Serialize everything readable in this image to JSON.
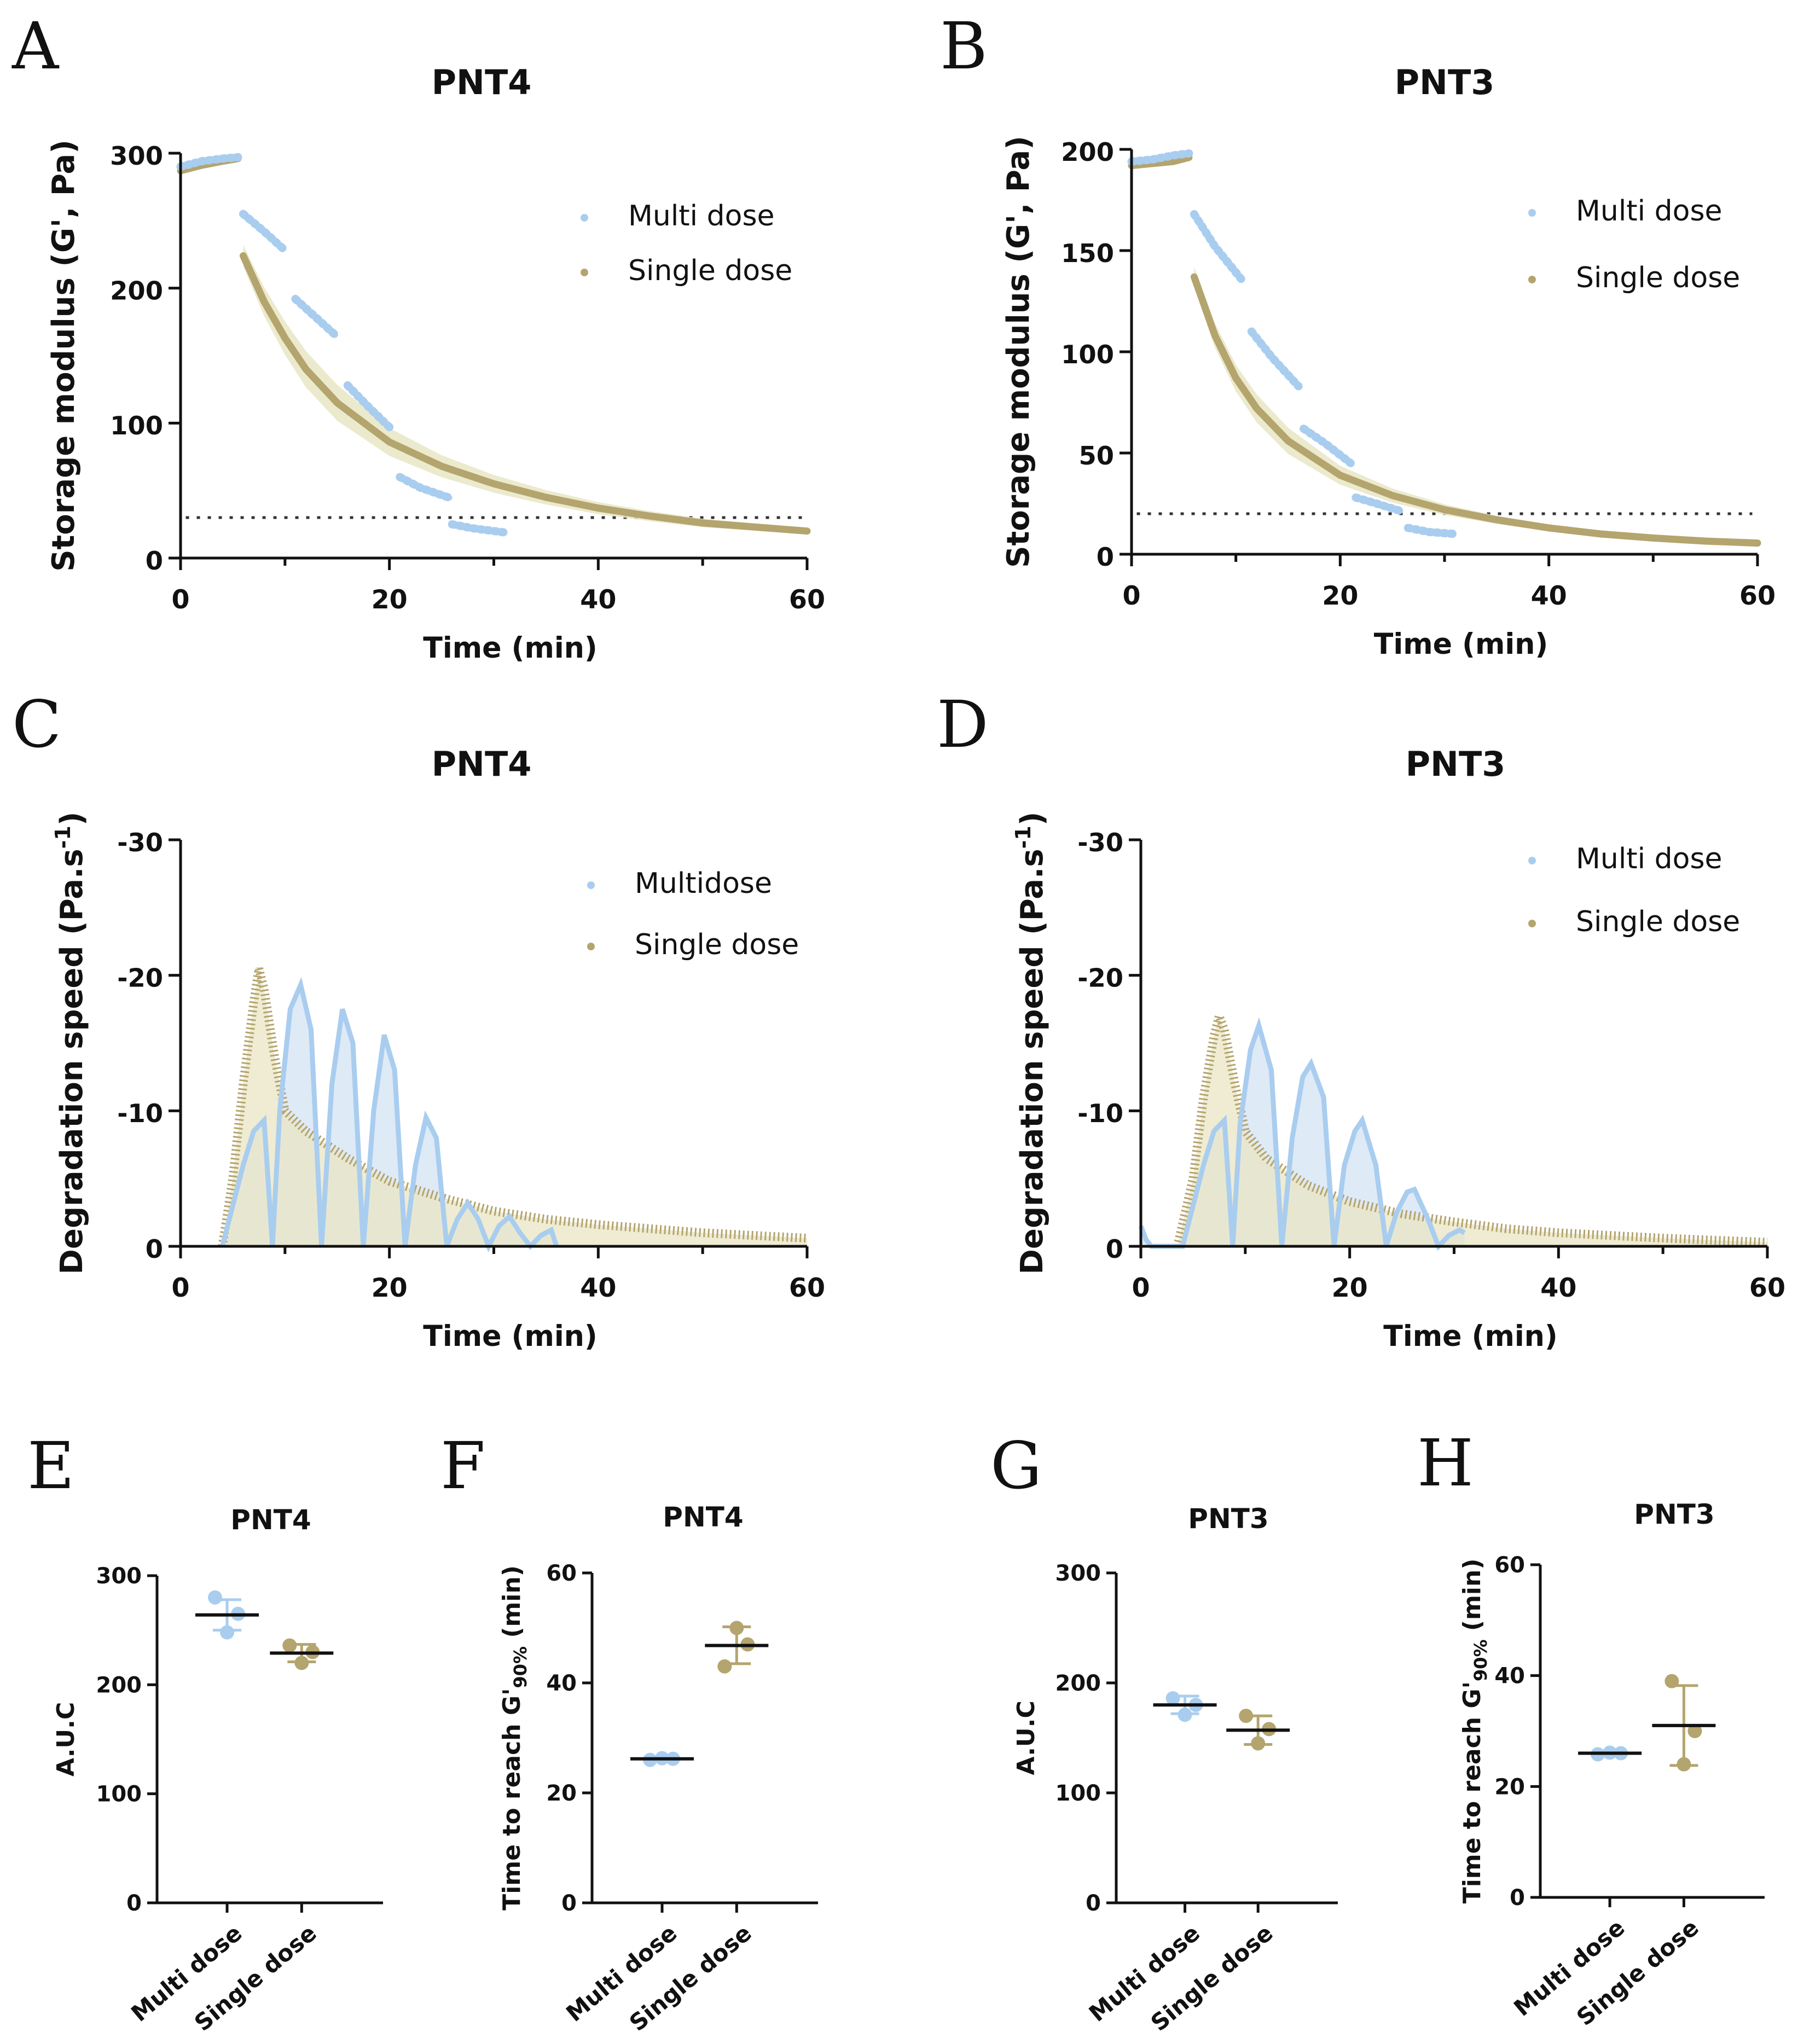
{
  "colors": {
    "multi": "#a9cdef",
    "multi_fill": "#dbe8f6",
    "single": "#b4a46e",
    "single_fill": "#e9e6c4",
    "threshold": "#333333",
    "axis": "#111111"
  },
  "chart_data": [
    {
      "panel": "A",
      "type": "line",
      "title": "PNT4",
      "xlabel": "Time (min)",
      "ylabel": "Storage modulus (G',  Pa)",
      "xlim": [
        0,
        60
      ],
      "ylim": [
        0,
        300
      ],
      "xticks": [
        "0",
        "20",
        "40",
        "60"
      ],
      "yticks": [
        "0",
        "100",
        "200",
        "300"
      ],
      "legend_position": "top-right",
      "threshold": 30,
      "series": [
        {
          "name": "Multi dose",
          "segments": [
            {
              "x": [
                0,
                2,
                4,
                5.5
              ],
              "y": [
                290,
                294,
                296,
                297
              ]
            },
            {
              "x": [
                6,
                8,
                10
              ],
              "y": [
                255,
                242,
                228
              ]
            },
            {
              "x": [
                11,
                13,
                15
              ],
              "y": [
                192,
                178,
                164
              ]
            },
            {
              "x": [
                16,
                18,
                20
              ],
              "y": [
                128,
                112,
                97
              ]
            },
            {
              "x": [
                21,
                23,
                26
              ],
              "y": [
                60,
                52,
                44
              ]
            },
            {
              "x": [
                26,
                28,
                31
              ],
              "y": [
                25,
                22,
                19
              ]
            }
          ]
        },
        {
          "name": "Single dose",
          "segments": [
            {
              "x": [
                0,
                2,
                4,
                5.5
              ],
              "y": [
                287,
                291,
                294,
                296
              ]
            },
            {
              "x": [
                6,
                8,
                10,
                12,
                15,
                20,
                25,
                30,
                35,
                40,
                45,
                50,
                55,
                60
              ],
              "y": [
                224,
                190,
                163,
                140,
                115,
                86,
                68,
                55,
                45,
                37,
                31,
                26,
                23,
                20
              ]
            }
          ]
        }
      ]
    },
    {
      "panel": "B",
      "type": "line",
      "title": "PNT3",
      "xlabel": "Time (min)",
      "ylabel": "Storage modulus (G',  Pa)",
      "xlim": [
        0,
        60
      ],
      "ylim": [
        0,
        200
      ],
      "xticks": [
        "0",
        "20",
        "40",
        "60"
      ],
      "yticks": [
        "0",
        "50",
        "100",
        "150",
        "200"
      ],
      "legend_position": "top-right",
      "threshold": 20,
      "series": [
        {
          "name": "Multi dose",
          "segments": [
            {
              "x": [
                0,
                2,
                4,
                5.5
              ],
              "y": [
                194,
                195,
                197,
                198
              ]
            },
            {
              "x": [
                6,
                8,
                10.5
              ],
              "y": [
                168,
                152,
                136
              ]
            },
            {
              "x": [
                11.5,
                13.5,
                16
              ],
              "y": [
                110,
                97,
                83
              ]
            },
            {
              "x": [
                16.5,
                18.5,
                21
              ],
              "y": [
                62,
                55,
                45
              ]
            },
            {
              "x": [
                21.5,
                23.5,
                26
              ],
              "y": [
                28,
                25,
                21
              ]
            },
            {
              "x": [
                26.5,
                28.5,
                31
              ],
              "y": [
                13,
                11,
                10
              ]
            }
          ]
        },
        {
          "name": "Single dose",
          "segments": [
            {
              "x": [
                0,
                2,
                4,
                5.5
              ],
              "y": [
                192,
                193,
                194,
                196
              ]
            },
            {
              "x": [
                6,
                8,
                10,
                12,
                15,
                20,
                25,
                30,
                35,
                40,
                45,
                50,
                55,
                60
              ],
              "y": [
                137,
                108,
                87,
                72,
                56,
                39,
                29,
                22,
                17,
                13,
                10,
                8,
                6.5,
                5.5
              ]
            }
          ]
        }
      ]
    },
    {
      "panel": "C",
      "type": "area",
      "title": "PNT4",
      "xlabel": "Time (min)",
      "ylabel": "Degradation speed (Pa.s",
      "ylabel_sup": "-1",
      "ylabel_end": ")",
      "xlim": [
        0,
        60
      ],
      "ylim": [
        0,
        -30
      ],
      "xticks": [
        "0",
        "20",
        "40",
        "60"
      ],
      "yticks": [
        "0",
        "-10",
        "-20",
        "-30"
      ],
      "legend_position": "top-right",
      "series": [
        {
          "name": "Multidose",
          "x": [
            4,
            5,
            6,
            7,
            8,
            8.8,
            9.5,
            10.5,
            11.5,
            12.5,
            13.5,
            14.5,
            15.5,
            16.5,
            17.5,
            18.5,
            19.5,
            20.5,
            21.5,
            22.5,
            23.5,
            24.5,
            25.5,
            26.5,
            27.5,
            28.5,
            29.5,
            30.5,
            31.5,
            32.5,
            33.5,
            34.5,
            35.5,
            36
          ],
          "y": [
            0,
            -3,
            -6,
            -8.5,
            -9.3,
            0,
            -10,
            -17.5,
            -19.3,
            -16,
            0,
            -12,
            -17.5,
            -15,
            0,
            -10,
            -15.6,
            -13,
            0,
            -6,
            -9.5,
            -8,
            0,
            -2,
            -3.2,
            -2,
            0,
            -1.5,
            -2.2,
            -1,
            0,
            -0.8,
            -1.2,
            0
          ]
        },
        {
          "name": "Single dose",
          "x": [
            4,
            5,
            6,
            7,
            7.5,
            8,
            9,
            10,
            12,
            14,
            16,
            20,
            25,
            30,
            35,
            40,
            45,
            50,
            55,
            60
          ],
          "y": [
            0,
            -5,
            -12,
            -18,
            -20.5,
            -19,
            -14,
            -10,
            -8.5,
            -7.5,
            -6.5,
            -4.8,
            -3.6,
            -2.6,
            -2.0,
            -1.6,
            -1.3,
            -1.0,
            -0.8,
            -0.6
          ]
        }
      ]
    },
    {
      "panel": "D",
      "type": "area",
      "title": "PNT3",
      "xlabel": "Time (min)",
      "ylabel": "Degradation speed (Pa.s",
      "ylabel_sup": "-1",
      "ylabel_end": ")",
      "xlim": [
        0,
        60
      ],
      "ylim": [
        0,
        -30
      ],
      "xticks": [
        "0",
        "20",
        "40",
        "60"
      ],
      "yticks": [
        "0",
        "-10",
        "-20",
        "-30"
      ],
      "legend_position": "top-right",
      "series": [
        {
          "name": "Multi dose",
          "x": [
            0,
            0.5,
            1,
            4,
            5,
            6,
            7,
            8,
            8.8,
            9.5,
            10.5,
            11.3,
            12.5,
            13.5,
            14.5,
            15.5,
            16.3,
            17.5,
            18.5,
            19.5,
            20.5,
            21.2,
            22.5,
            23.5,
            24.5,
            25.5,
            26.2,
            27.5,
            28.5,
            29.5,
            30.5,
            31
          ],
          "y": [
            -1.5,
            -0.5,
            0,
            0,
            -3,
            -6,
            -8.5,
            -9.3,
            0,
            -9,
            -14.5,
            -16.3,
            -13,
            0,
            -8,
            -12.5,
            -13.5,
            -11,
            0,
            -6,
            -8.5,
            -9.3,
            -6,
            0,
            -2.5,
            -4,
            -4.2,
            -2,
            0,
            -0.8,
            -1.2,
            -1
          ]
        },
        {
          "name": "Single dose",
          "x": [
            3.5,
            5,
            6,
            7,
            7.5,
            8,
            9,
            10,
            12,
            14,
            16,
            20,
            25,
            30,
            35,
            40,
            45,
            50,
            55,
            60
          ],
          "y": [
            0,
            -5,
            -11,
            -15.5,
            -17,
            -16,
            -12,
            -8.5,
            -6.5,
            -5.5,
            -4.5,
            -3.3,
            -2.4,
            -1.8,
            -1.3,
            -1.0,
            -0.8,
            -0.6,
            -0.45,
            -0.3
          ]
        }
      ]
    },
    {
      "panel": "E",
      "type": "scatter",
      "title": "PNT4",
      "ylabel": "A.U.C",
      "categories": [
        "Multi dose",
        "Single dose"
      ],
      "ylim": [
        0,
        300
      ],
      "yticks": [
        "0",
        "100",
        "200",
        "300"
      ],
      "points": [
        [
          280,
          265,
          248
        ],
        [
          236,
          230,
          220
        ]
      ],
      "means": [
        264,
        229
      ],
      "errors": [
        [
          250,
          278
        ],
        [
          221,
          237
        ]
      ]
    },
    {
      "panel": "F",
      "type": "scatter",
      "title": "PNT4",
      "ylabel": "Time to reach G'",
      "ylabel_sub": "90%",
      "ylabel_end": " (min)",
      "categories": [
        "Multi dose",
        "Single dose"
      ],
      "ylim": [
        0,
        60
      ],
      "yticks": [
        "0",
        "20",
        "40",
        "60"
      ],
      "points": [
        [
          26,
          26.2,
          26.3
        ],
        [
          43,
          47,
          50
        ]
      ],
      "means": [
        26.2,
        46.8
      ],
      "errors": [
        [
          26,
          26.4
        ],
        [
          43.5,
          50.2
        ]
      ]
    },
    {
      "panel": "G",
      "type": "scatter",
      "title": "PNT3",
      "ylabel": "A.U.C",
      "categories": [
        "Multi dose",
        "Single dose"
      ],
      "ylim": [
        0,
        300
      ],
      "yticks": [
        "0",
        "100",
        "200",
        "300"
      ],
      "points": [
        [
          186,
          180,
          171
        ],
        [
          170,
          158,
          145
        ]
      ],
      "means": [
        180,
        157
      ],
      "errors": [
        [
          172,
          188
        ],
        [
          144,
          170
        ]
      ]
    },
    {
      "panel": "H",
      "type": "scatter",
      "title": "PNT3",
      "ylabel": "Time to reach G'",
      "ylabel_sub": "90%",
      "ylabel_end": " (min)",
      "categories": [
        "Multi dose",
        "Single dose"
      ],
      "ylim": [
        0,
        60
      ],
      "yticks": [
        "0",
        "20",
        "40",
        "60"
      ],
      "points": [
        [
          25.8,
          26,
          26.1
        ],
        [
          39,
          30,
          24
        ]
      ],
      "means": [
        26,
        31
      ],
      "errors": [
        [
          25.6,
          26.3
        ],
        [
          23.8,
          38.2
        ]
      ]
    }
  ]
}
